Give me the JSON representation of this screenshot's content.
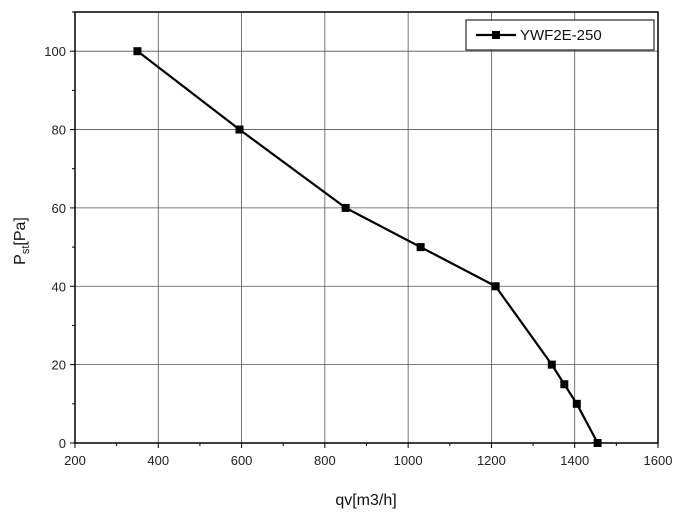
{
  "chart_data": {
    "type": "line",
    "xlabel": "qv[m3/h]",
    "ylabel_main": "P",
    "ylabel_sub": "st",
    "ylabel_suffix": "[Pa]",
    "xlim": [
      200,
      1600
    ],
    "ylim": [
      0,
      110
    ],
    "x_ticks": [
      "200",
      "400",
      "600",
      "800",
      "1000",
      "1200",
      "1400",
      "1600"
    ],
    "y_ticks": [
      "0",
      "20",
      "40",
      "60",
      "80",
      "100"
    ],
    "grid": true,
    "legend_position": "top-right",
    "series": [
      {
        "name": "YWF2E-250",
        "color": "#000000",
        "marker": "square",
        "x": [
          350,
          595,
          850,
          1030,
          1210,
          1345,
          1375,
          1405,
          1455
        ],
        "y": [
          100,
          80,
          60,
          50,
          40,
          20,
          15,
          10,
          0
        ]
      }
    ]
  }
}
